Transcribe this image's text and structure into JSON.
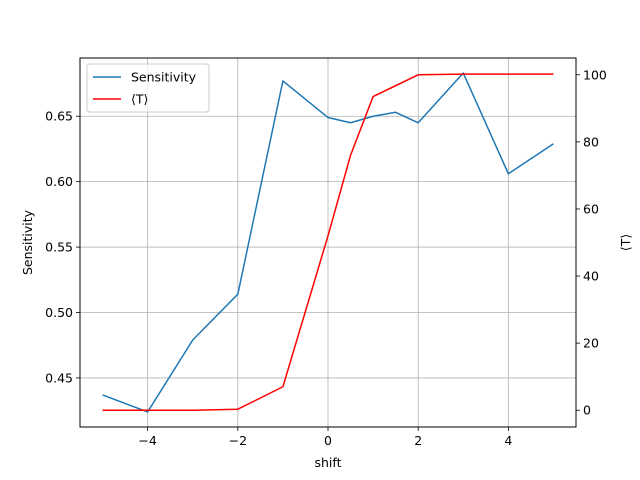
{
  "chart_data": {
    "type": "line",
    "xlabel": "shift",
    "ylabel_left": "Sensitivity",
    "ylabel_right": "⟨T⟩",
    "xlim": [
      -5.5,
      5.5
    ],
    "ylim_left": [
      0.4125,
      0.6945
    ],
    "ylim_right": [
      -5.0,
      105.0
    ],
    "xticks": [
      -4,
      -2,
      0,
      2,
      4
    ],
    "xtick_labels": [
      "−4",
      "−2",
      "0",
      "2",
      "4"
    ],
    "yticks_left": [
      0.45,
      0.5,
      0.55,
      0.6,
      0.65
    ],
    "ytick_labels_left": [
      "0.45",
      "0.50",
      "0.55",
      "0.60",
      "0.65"
    ],
    "yticks_right": [
      0,
      20,
      40,
      60,
      80,
      100
    ],
    "ytick_labels_right": [
      "0",
      "20",
      "40",
      "60",
      "80",
      "100"
    ],
    "grid": true,
    "legend_position": "top-left",
    "series": [
      {
        "name": "Sensitivity",
        "axis": "left",
        "color": "#1f77b4",
        "x": [
          -5,
          -4,
          -3,
          -2,
          -1,
          0,
          0.5,
          1,
          1.5,
          2,
          3,
          4,
          5
        ],
        "values": [
          0.437,
          0.424,
          0.479,
          0.514,
          0.677,
          0.649,
          0.645,
          0.65,
          0.653,
          0.645,
          0.683,
          0.606,
          0.629
        ]
      },
      {
        "name": "⟨T⟩",
        "axis": "right",
        "color": "#ff0000",
        "x": [
          -5,
          -4,
          -3,
          -2,
          -1,
          0,
          0.5,
          1,
          2,
          3,
          4,
          5
        ],
        "values": [
          0.0,
          0.0,
          0.0,
          0.3,
          7.0,
          52.0,
          76.0,
          93.5,
          100.0,
          100.2,
          100.2,
          100.2
        ]
      }
    ]
  }
}
